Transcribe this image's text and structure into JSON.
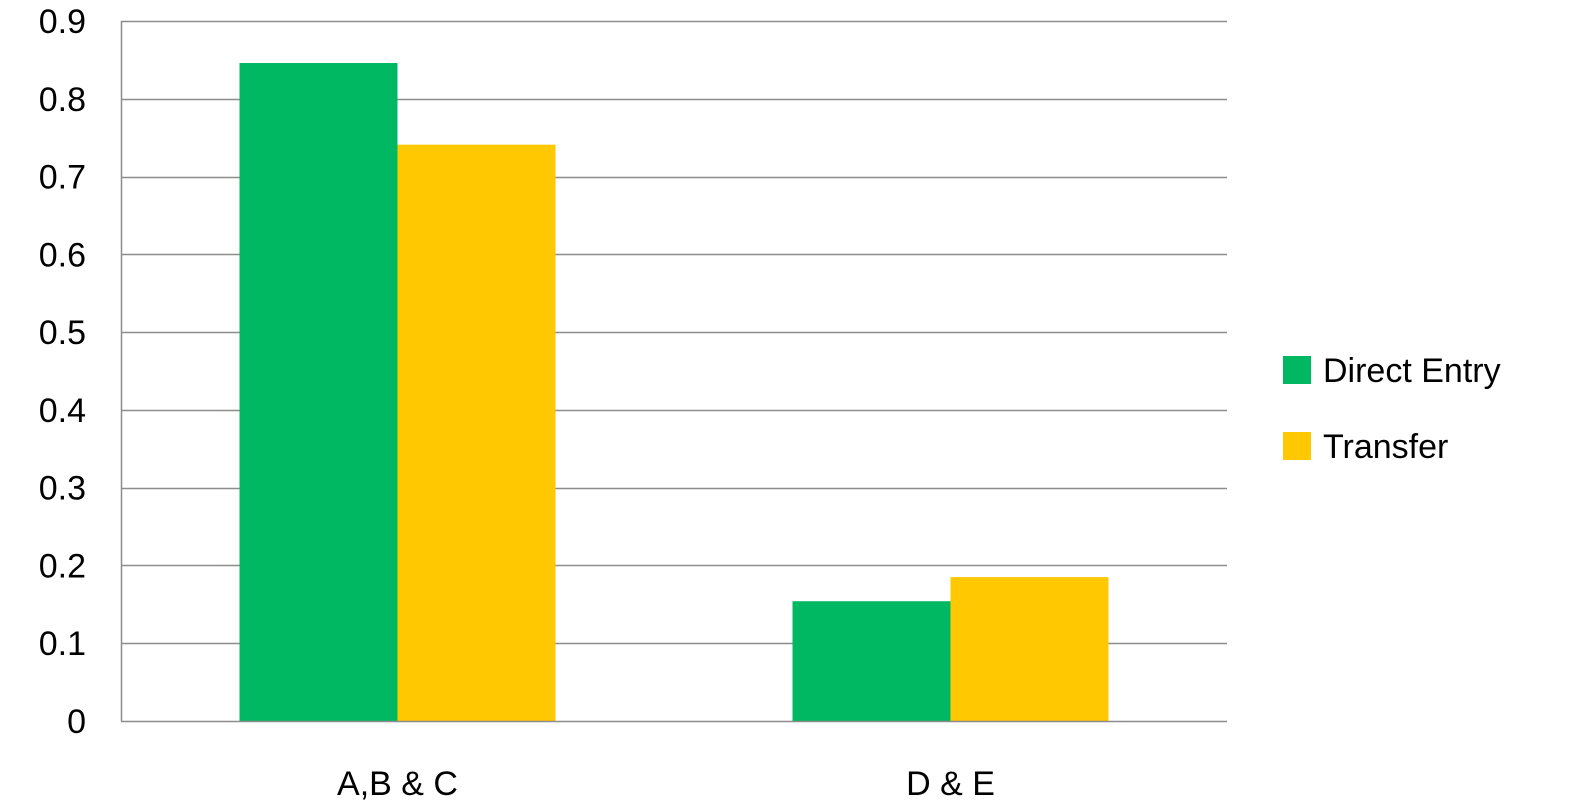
{
  "chart_data": {
    "type": "bar",
    "title": "",
    "xlabel": "",
    "ylabel": "",
    "categories": [
      "A,B & C",
      "D & E"
    ],
    "series": [
      {
        "name": "Direct Entry",
        "values": [
          0.846,
          0.154
        ],
        "color": "#00B862"
      },
      {
        "name": "Transfer",
        "values": [
          0.741,
          0.185
        ],
        "color": "#FFC800"
      }
    ],
    "ylim": [
      0,
      0.9
    ],
    "yticks": [
      "0",
      "0.1",
      "0.2",
      "0.3",
      "0.4",
      "0.5",
      "0.6",
      "0.7",
      "0.8",
      "0.9"
    ],
    "grid": true,
    "legend_position": "right",
    "gridline_color": "#8C8C8C"
  }
}
